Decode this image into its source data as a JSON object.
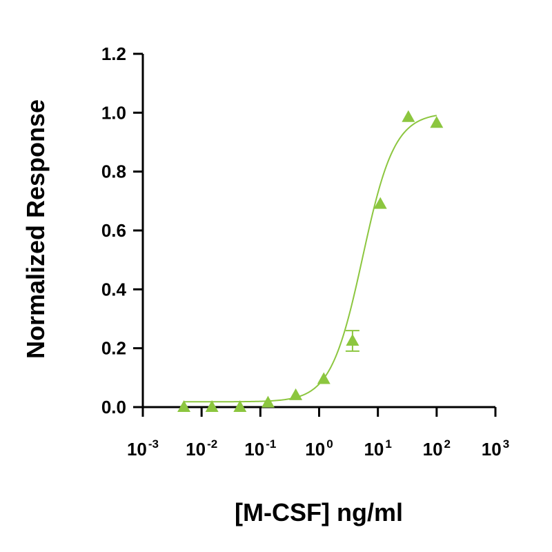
{
  "chart_data": {
    "type": "scatter",
    "title": "",
    "xlabel": "[M-CSF] ng/ml",
    "ylabel": "Normalized Response",
    "x_scale": "log10",
    "xlim": [
      0.001,
      1000
    ],
    "ylim": [
      0,
      1.2
    ],
    "x_ticks": [
      {
        "base": "10",
        "exp": "-3"
      },
      {
        "base": "10",
        "exp": "-2"
      },
      {
        "base": "10",
        "exp": "-1"
      },
      {
        "base": "10",
        "exp": "0"
      },
      {
        "base": "10",
        "exp": "1"
      },
      {
        "base": "10",
        "exp": "2"
      },
      {
        "base": "10",
        "exp": "3"
      }
    ],
    "y_ticks": [
      "0.0",
      "0.2",
      "0.4",
      "0.6",
      "0.8",
      "1.0",
      "1.2"
    ],
    "grid": false,
    "series": [
      {
        "color": "#8cc63f",
        "marker": "triangle",
        "points": [
          {
            "x": 0.005,
            "y": 0.0
          },
          {
            "x": 0.015,
            "y": 0.0
          },
          {
            "x": 0.045,
            "y": 0.0
          },
          {
            "x": 0.135,
            "y": 0.015
          },
          {
            "x": 0.4,
            "y": 0.04
          },
          {
            "x": 1.2,
            "y": 0.095
          },
          {
            "x": 3.7,
            "y": 0.225,
            "err": 0.035
          },
          {
            "x": 11,
            "y": 0.69
          },
          {
            "x": 33,
            "y": 0.985
          },
          {
            "x": 100,
            "y": 0.965
          }
        ],
        "fit": {
          "model": "4PL",
          "bottom": 0.018,
          "top": 1.0,
          "ec50": 5.5,
          "hill": 1.6,
          "x_range": [
            0.005,
            100
          ]
        }
      }
    ]
  }
}
